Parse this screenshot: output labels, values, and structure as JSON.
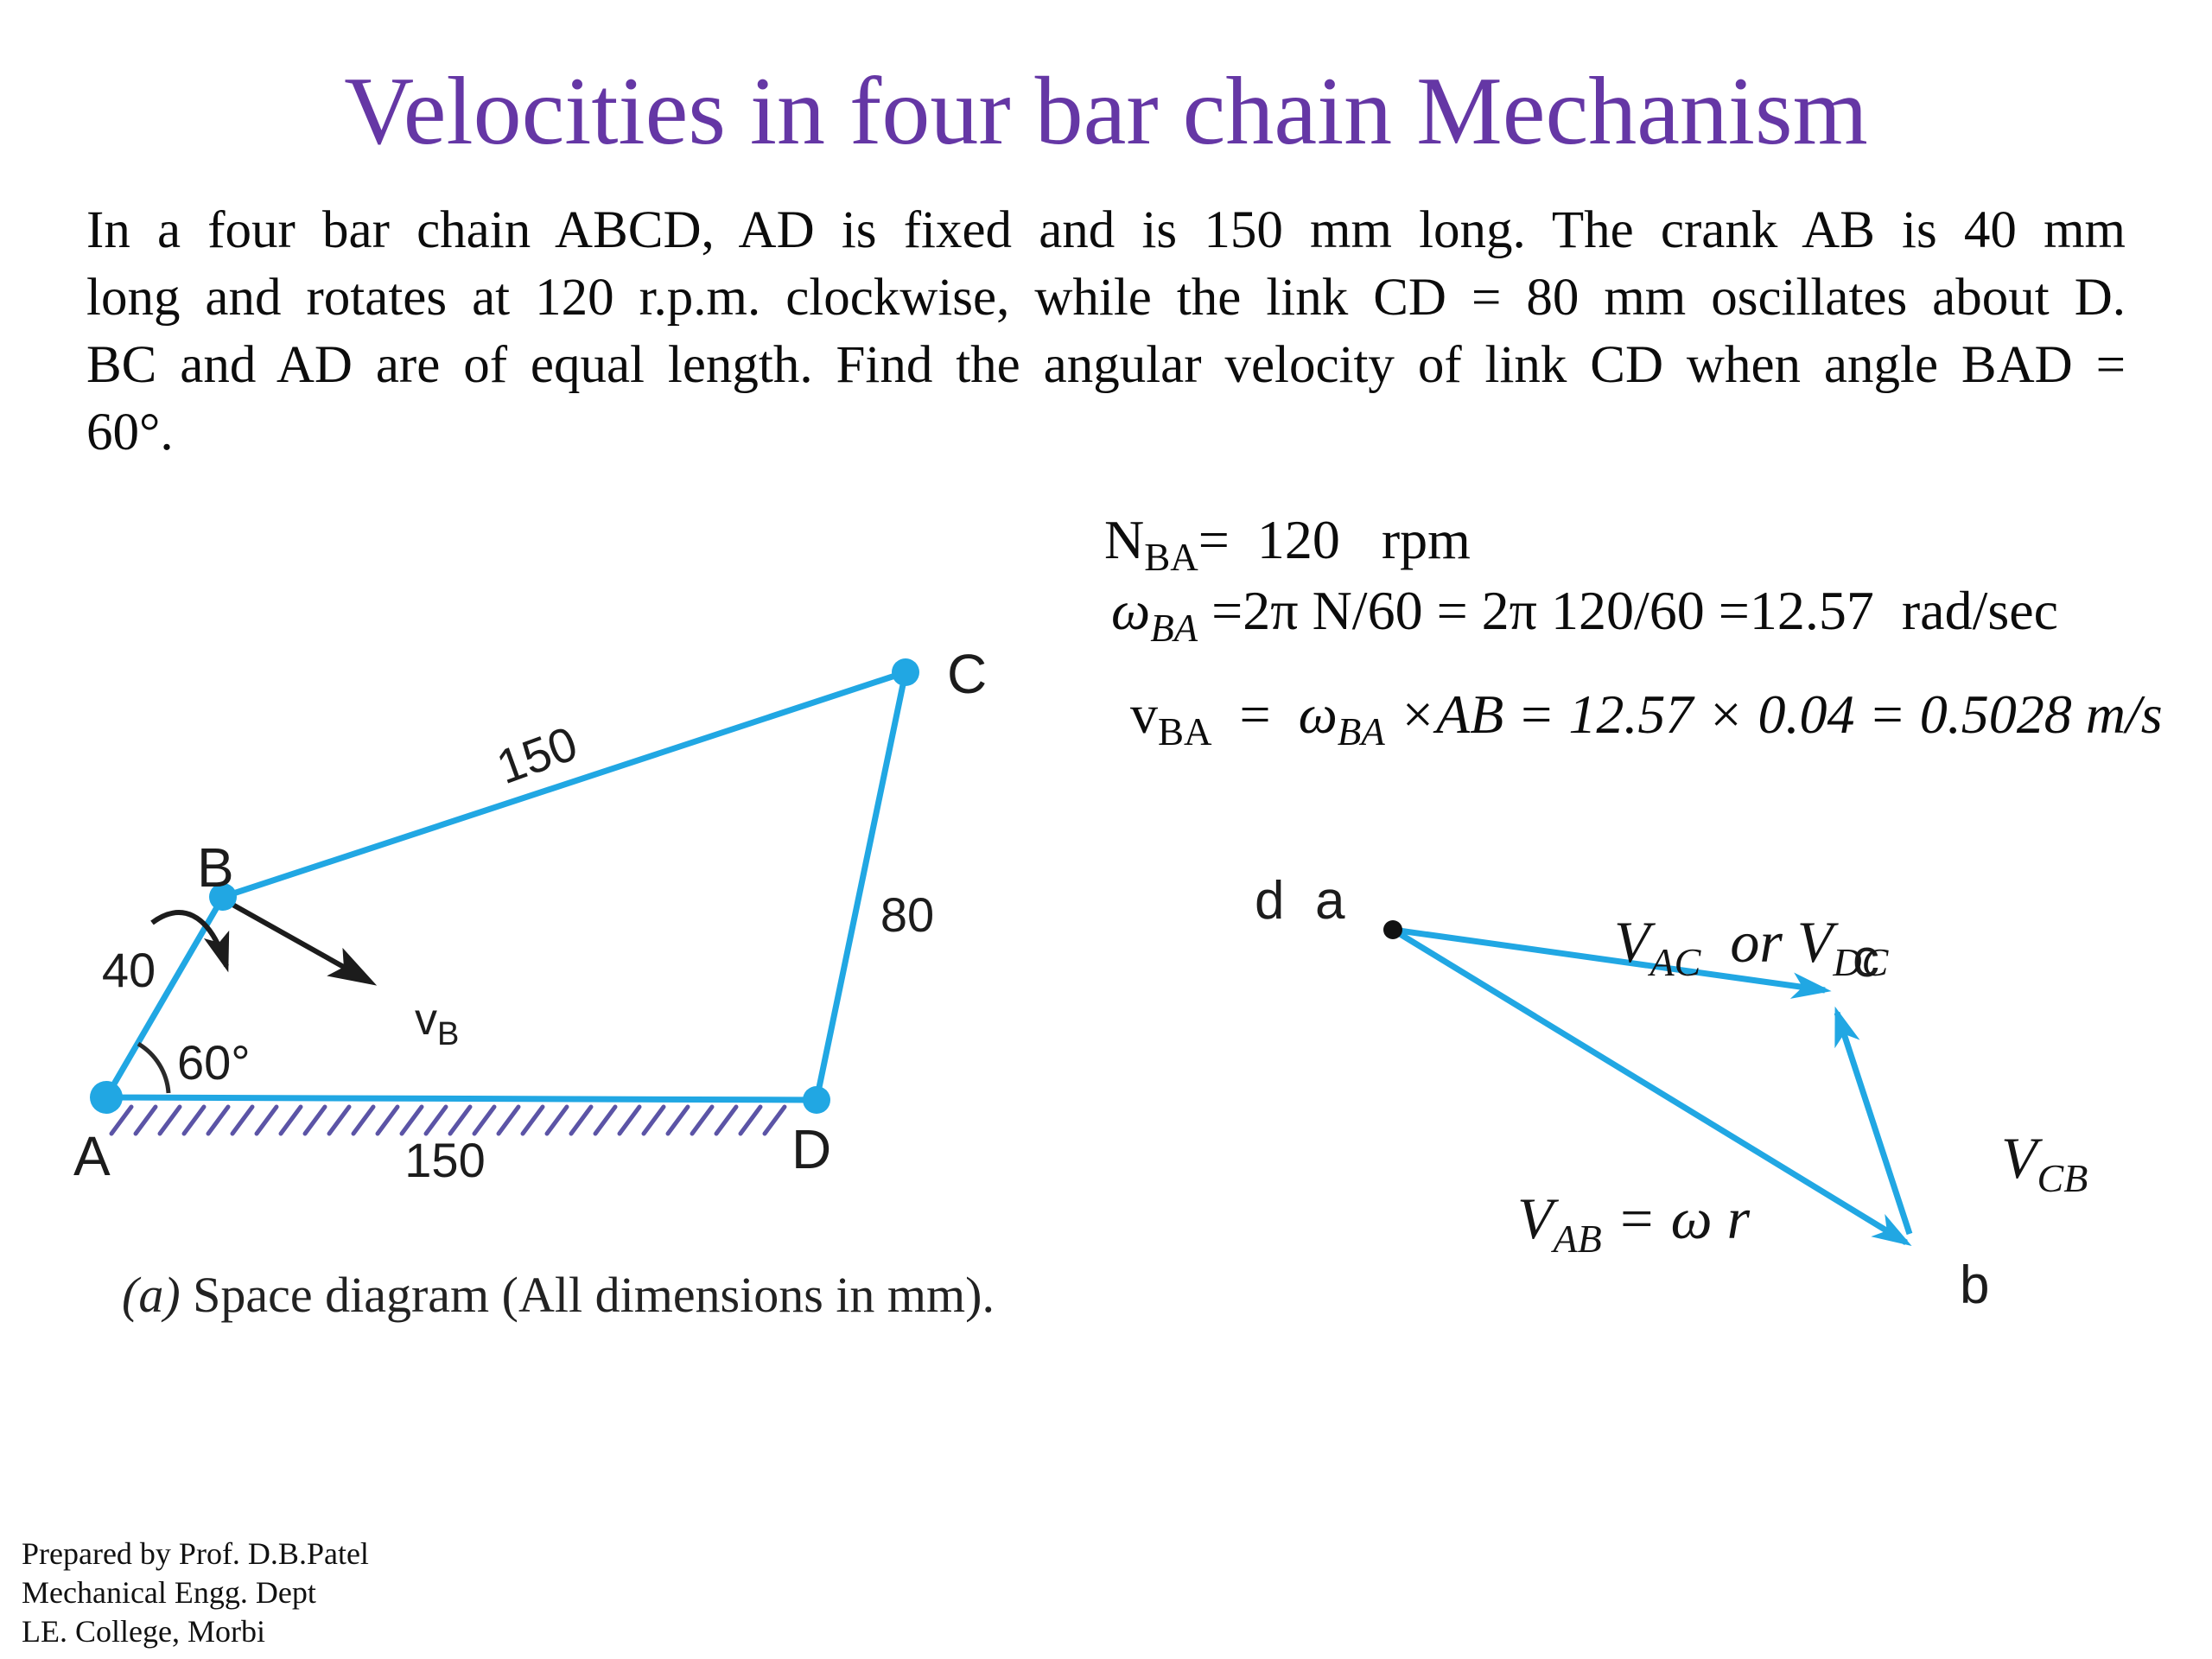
{
  "title": {
    "text": "Velocities in four bar chain Mechanism",
    "color": "#6537A5"
  },
  "problem": {
    "lines": [
      "In a four bar chain ABCD, AD is fixed and is 150 mm long. The crank AB is 40 mm",
      "long and rotates at 120 r.p.m. clockwise, while the link CD = 80 mm oscillates about D.",
      "BC and AD are of equal length. Find the angular velocity of link CD when angle BAD =",
      "60°."
    ]
  },
  "equations": {
    "line1": {
      "var": "N",
      "sub": "BA",
      "rest": "=  120   rpm"
    },
    "line2": {
      "var": "ω",
      "sub": "BA",
      "rest": " =2π N/60 = 2π 120/60 =12.57  rad/sec"
    },
    "line3": {
      "var": "v",
      "sub": "BA",
      "mid": "  =  ",
      "var2": "ω",
      "sub2": "BA",
      "sp": " ",
      "rest": "×AB = 12.57 × 0.04 = 0.5028 m/s"
    }
  },
  "space_diagram": {
    "nodes": {
      "a": "A",
      "b": "B",
      "c": "C",
      "d": "D"
    },
    "dims": {
      "ab": "40",
      "bc": "150",
      "cd": "80",
      "ad": "150",
      "angle_bad": "60°"
    },
    "vb": {
      "v": "v",
      "sub": "B"
    },
    "caption": {
      "marker": "(a)",
      "text": " Space diagram (All dimensions in mm)."
    }
  },
  "velocity_diagram": {
    "points": {
      "d": "d",
      "a": "a",
      "c": "c",
      "b": "b"
    },
    "labels": {
      "vac": {
        "v1": "V",
        "s1": "AC",
        "mid": "  or ",
        "v2": "V",
        "s2": "DC"
      },
      "vcb": {
        "v": "V",
        "s": "CB"
      },
      "vab": {
        "v": "V",
        "s": "AB",
        "rest": " = ω r"
      }
    }
  },
  "footer": {
    "line1": "Prepared by Prof. D.B.Patel",
    "line2": "Mechanical Engg. Dept",
    "line3": "LE. College, Morbi"
  },
  "colors": {
    "link_blue": "#21A7E3",
    "hatch_purple": "#5B54A6",
    "ink_black": "#1c1c1c",
    "title_purple": "#6537A5"
  }
}
